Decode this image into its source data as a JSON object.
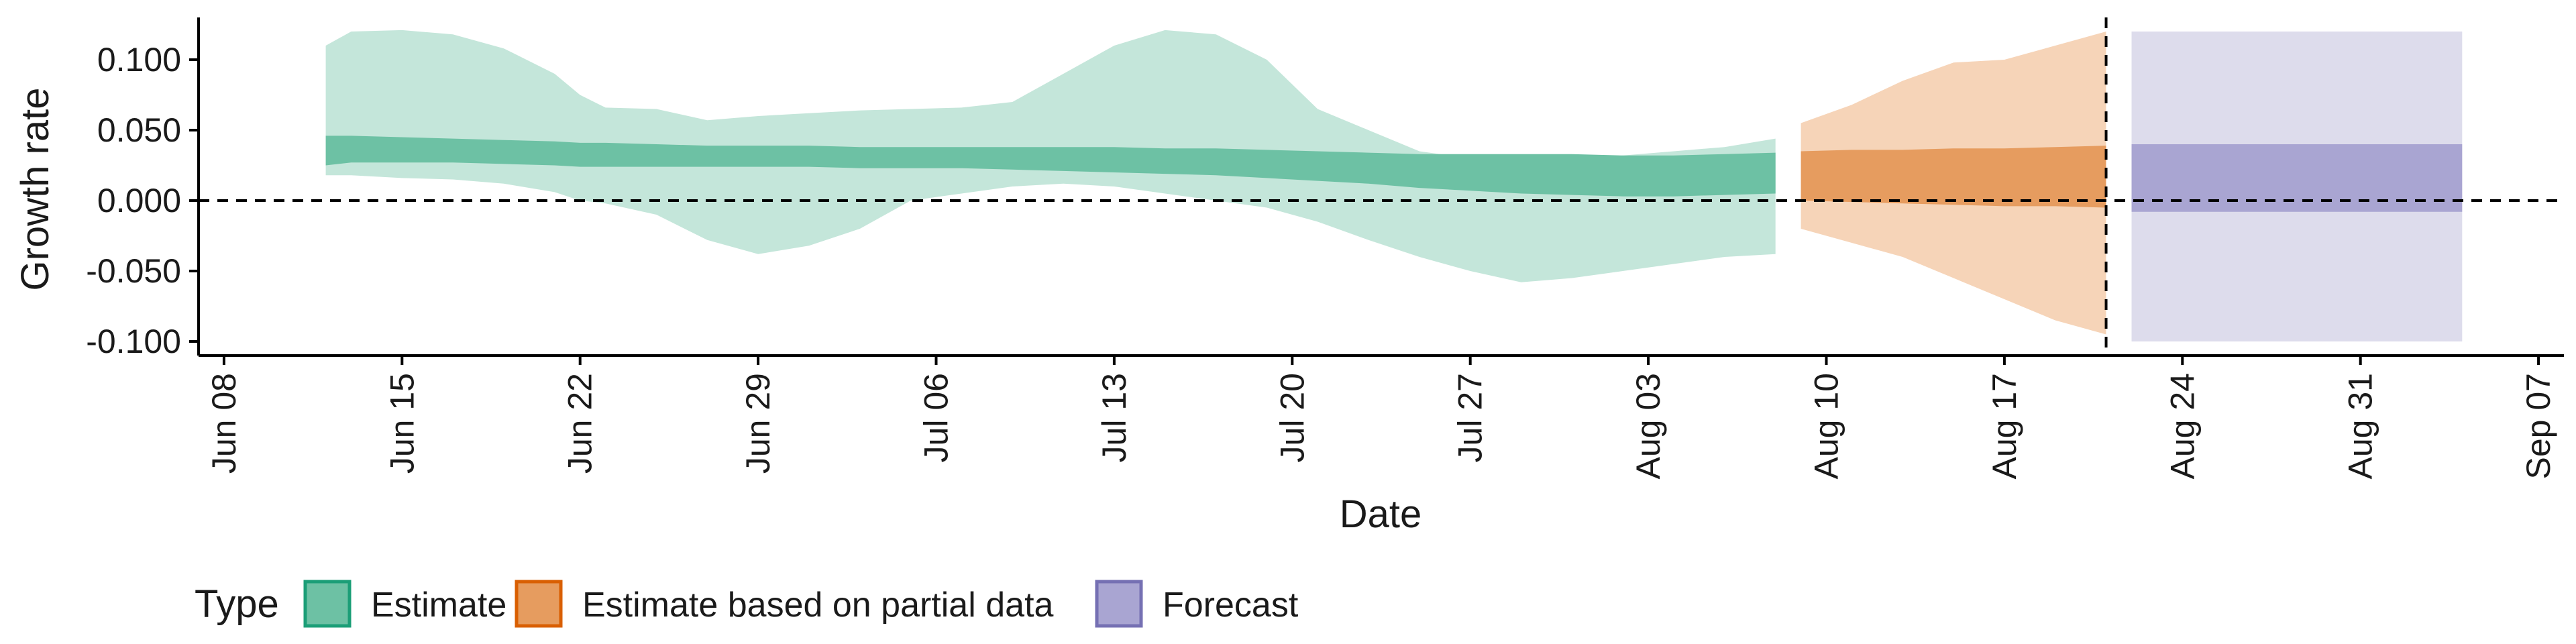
{
  "chart_data": {
    "type": "area",
    "xlabel": "Date",
    "ylabel": "Growth rate",
    "xlim": [
      "2020-06-07",
      "2020-09-08"
    ],
    "ylim": [
      -0.11,
      0.13
    ],
    "x_ticks": [
      "Jun 08",
      "Jun 15",
      "Jun 22",
      "Jun 29",
      "Jul 06",
      "Jul 13",
      "Jul 20",
      "Jul 27",
      "Aug 03",
      "Aug 10",
      "Aug 17",
      "Aug 24",
      "Aug 31",
      "Sep 07"
    ],
    "y_ticks": [
      "0.100",
      "0.050",
      "0.000",
      "-0.050",
      "-0.100"
    ],
    "y_tick_values": [
      0.1,
      0.05,
      0.0,
      -0.05,
      -0.1
    ],
    "reference_lines": {
      "y_zero": 0.0,
      "vline_date": "2020-08-21",
      "style": "dashed"
    },
    "grid": false,
    "legend": {
      "title": "Type",
      "position": "bottom-left",
      "entries": [
        {
          "label": "Estimate",
          "fill": "#6dc1a4",
          "border": "#1b9e77"
        },
        {
          "label": "Estimate based on partial data",
          "fill": "#e69c5f",
          "border": "#d95f02"
        },
        {
          "label": "Forecast",
          "fill": "#a9a5d2",
          "border": "#7570b3"
        }
      ]
    },
    "colors": {
      "estimate_inner": "#6dc1a4",
      "estimate_outer": "#c4e6da",
      "partial_inner": "#e69c5f",
      "partial_outer": "#f6d4b8",
      "forecast_inner": "#a9a5d2",
      "forecast_outer": "#dddcec"
    },
    "series": [
      {
        "name": "Estimate",
        "x": [
          "2020-06-12",
          "2020-06-13",
          "2020-06-15",
          "2020-06-17",
          "2020-06-19",
          "2020-06-21",
          "2020-06-22",
          "2020-06-23",
          "2020-06-25",
          "2020-06-27",
          "2020-06-29",
          "2020-07-01",
          "2020-07-03",
          "2020-07-05",
          "2020-07-07",
          "2020-07-09",
          "2020-07-11",
          "2020-07-13",
          "2020-07-15",
          "2020-07-17",
          "2020-07-19",
          "2020-07-21",
          "2020-07-23",
          "2020-07-25",
          "2020-07-27",
          "2020-07-29",
          "2020-07-31",
          "2020-08-02",
          "2020-08-04",
          "2020-08-06",
          "2020-08-08"
        ],
        "upper_outer": [
          0.11,
          0.12,
          0.121,
          0.118,
          0.108,
          0.09,
          0.075,
          0.066,
          0.065,
          0.057,
          0.06,
          0.062,
          0.064,
          0.065,
          0.066,
          0.07,
          0.09,
          0.11,
          0.121,
          0.118,
          0.1,
          0.065,
          0.05,
          0.035,
          0.03,
          0.028,
          0.03,
          0.032,
          0.035,
          0.038,
          0.044
        ],
        "upper_inner": [
          0.046,
          0.046,
          0.045,
          0.044,
          0.043,
          0.042,
          0.041,
          0.041,
          0.04,
          0.039,
          0.039,
          0.039,
          0.038,
          0.038,
          0.038,
          0.038,
          0.038,
          0.038,
          0.037,
          0.037,
          0.036,
          0.035,
          0.034,
          0.033,
          0.033,
          0.033,
          0.033,
          0.032,
          0.032,
          0.033,
          0.034
        ],
        "lower_inner": [
          0.025,
          0.027,
          0.027,
          0.027,
          0.026,
          0.025,
          0.024,
          0.024,
          0.024,
          0.024,
          0.024,
          0.024,
          0.023,
          0.023,
          0.023,
          0.022,
          0.021,
          0.02,
          0.019,
          0.018,
          0.016,
          0.014,
          0.012,
          0.009,
          0.007,
          0.005,
          0.004,
          0.003,
          0.003,
          0.004,
          0.005
        ],
        "lower_outer": [
          0.018,
          0.018,
          0.016,
          0.015,
          0.012,
          0.006,
          0.0,
          -0.002,
          -0.01,
          -0.028,
          -0.038,
          -0.032,
          -0.02,
          0.0,
          0.005,
          0.01,
          0.012,
          0.01,
          0.005,
          0.0,
          -0.005,
          -0.015,
          -0.028,
          -0.04,
          -0.05,
          -0.058,
          -0.055,
          -0.05,
          -0.045,
          -0.04,
          -0.038
        ]
      },
      {
        "name": "Estimate based on partial data",
        "x": [
          "2020-08-09",
          "2020-08-11",
          "2020-08-13",
          "2020-08-15",
          "2020-08-17",
          "2020-08-19",
          "2020-08-21"
        ],
        "upper_outer": [
          0.055,
          0.068,
          0.085,
          0.098,
          0.1,
          0.11,
          0.12
        ],
        "upper_inner": [
          0.035,
          0.036,
          0.036,
          0.037,
          0.037,
          0.038,
          0.039
        ],
        "lower_inner": [
          0.0,
          -0.001,
          -0.002,
          -0.003,
          -0.004,
          -0.004,
          -0.005
        ],
        "lower_outer": [
          -0.02,
          -0.03,
          -0.04,
          -0.055,
          -0.07,
          -0.085,
          -0.095
        ]
      },
      {
        "name": "Forecast",
        "x": [
          "2020-08-22",
          "2020-09-04"
        ],
        "upper_outer": [
          0.12,
          0.12
        ],
        "upper_inner": [
          0.04,
          0.04
        ],
        "lower_inner": [
          -0.008,
          -0.008
        ],
        "lower_outer": [
          -0.1,
          -0.1
        ]
      }
    ]
  }
}
